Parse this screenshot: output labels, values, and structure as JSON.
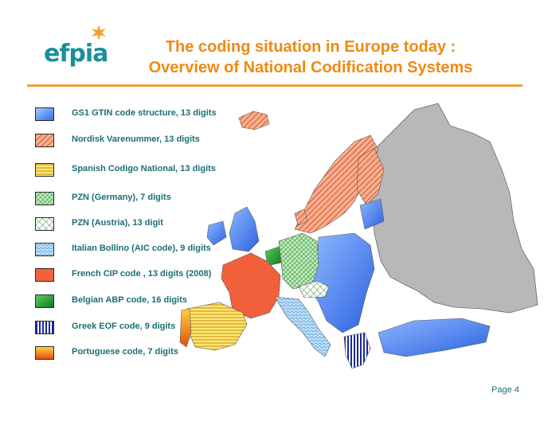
{
  "logo": {
    "text": "efpia",
    "color": "#1a8f9a",
    "star_color": "#f0a030"
  },
  "title": {
    "line1": "The coding situation in Europe today :",
    "line2": "Overview of National Codification Systems",
    "color": "#ee8a12"
  },
  "legend": {
    "items": [
      {
        "label": "GS1 GTIN code structure, 13 digits",
        "pattern": "gs1",
        "color": "#4a86f0"
      },
      {
        "label": "Nordisk Varenummer, 13 digits",
        "pattern": "nordisk",
        "color": "#f08a6a"
      },
      {
        "label": "Spanish Codigo National, 13 digits",
        "pattern": "spanish",
        "color": "#f2d24a"
      },
      {
        "label": "PZN (Germany), 7 digits",
        "pattern": "pzn-de",
        "color": "#2e9a3a"
      },
      {
        "label": "PZN (Austria), 13 digit",
        "pattern": "pzn-at",
        "color": "#3a9a4a"
      },
      {
        "label": "Italian Bollino (AIC code), 9 digits",
        "pattern": "italian",
        "color": "#7ab8e8"
      },
      {
        "label": "French CIP code , 13 digits (2008)",
        "pattern": "french",
        "color": "#f0502a"
      },
      {
        "label": "Belgian ABP code, 16 digits",
        "pattern": "belgian",
        "color": "#1e9a2e"
      },
      {
        "label": "Greek EOF code, 9 digits",
        "pattern": "greek",
        "color": "#1a2a9a"
      },
      {
        "label": "Portuguese code, 7 digits",
        "pattern": "portuguese",
        "color": "#f07a20"
      }
    ]
  },
  "map": {
    "non_covered_color": "#b8b8b8"
  },
  "footer": {
    "page": "Page 4"
  }
}
